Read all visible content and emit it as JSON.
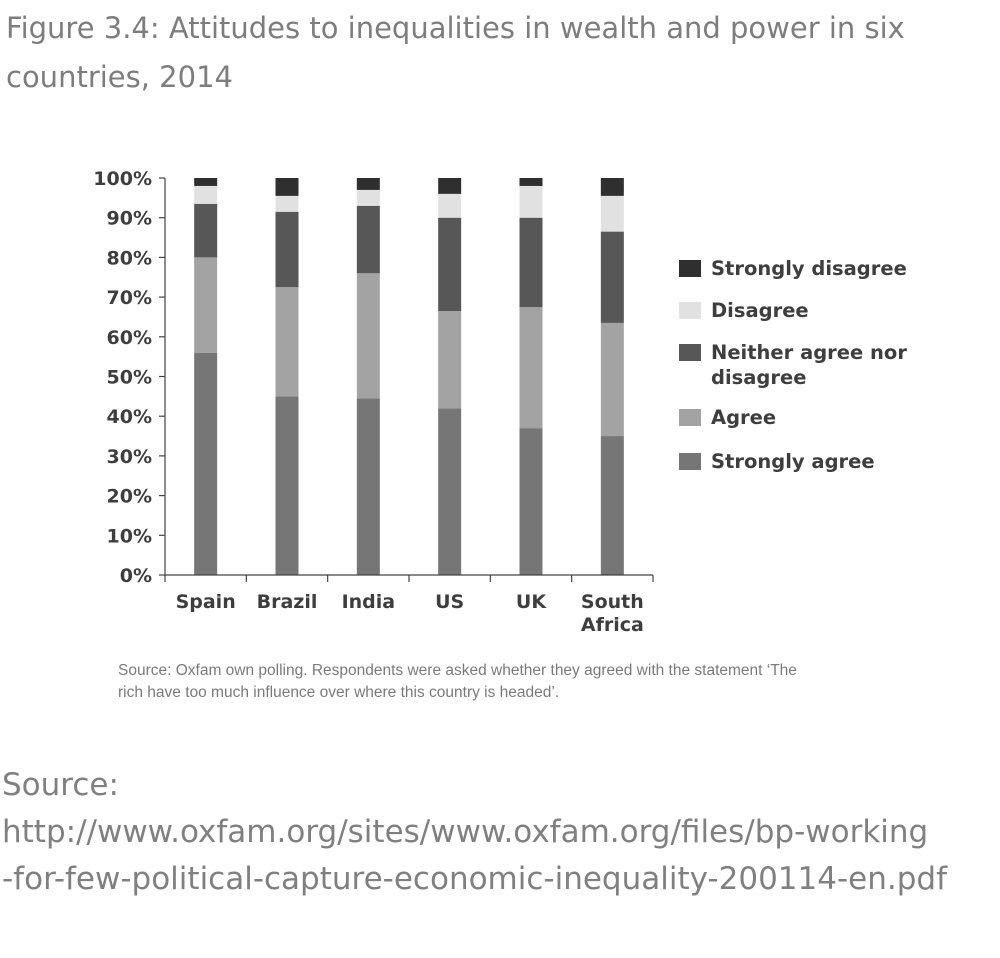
{
  "figure_title": "Figure 3.4: Attitudes to inequalities in wealth and power in six countries, 2014",
  "source_note": "Source: Oxfam own polling. Respondents were asked whether they agreed with the statement ‘The rich have too much influence over where this country is headed’.",
  "page_source": {
    "label": "Source:",
    "url_line1": "http://www.oxfam.org/sites/www.oxfam.org/files/bp-working",
    "url_line2": "-for-few-political-capture-economic-inequality-200114-en.pdf"
  },
  "chart_data": {
    "type": "bar",
    "stacked": true,
    "categories": [
      "Spain",
      "Brazil",
      "India",
      "US",
      "UK",
      "South Africa"
    ],
    "series": [
      {
        "name": "Strongly agree",
        "color": "#767676",
        "values": [
          56,
          45,
          44.5,
          42,
          37,
          35
        ]
      },
      {
        "name": "Agree",
        "color": "#a3a3a3",
        "values": [
          24,
          27.5,
          31.5,
          24.5,
          30.5,
          28.5
        ]
      },
      {
        "name": "Neither agree nor disagree",
        "color": "#575757",
        "values": [
          13.5,
          19,
          17,
          23.5,
          22.5,
          23
        ]
      },
      {
        "name": "Disagree",
        "color": "#e1e1e1",
        "values": [
          4.5,
          4,
          4,
          6,
          8,
          9
        ]
      },
      {
        "name": "Strongly disagree",
        "color": "#2f2f2f",
        "values": [
          2,
          4.5,
          3,
          4,
          2,
          4.5
        ]
      }
    ],
    "legend_order": [
      "Strongly disagree",
      "Disagree",
      "Neither agree nor disagree",
      "Agree",
      "Strongly agree"
    ],
    "legend_position": "right",
    "ylim": [
      0,
      100
    ],
    "yticks": [
      "0%",
      "10%",
      "20%",
      "30%",
      "40%",
      "50%",
      "60%",
      "70%",
      "80%",
      "90%",
      "100%"
    ],
    "grid": false,
    "xlabel": "",
    "ylabel": ""
  }
}
